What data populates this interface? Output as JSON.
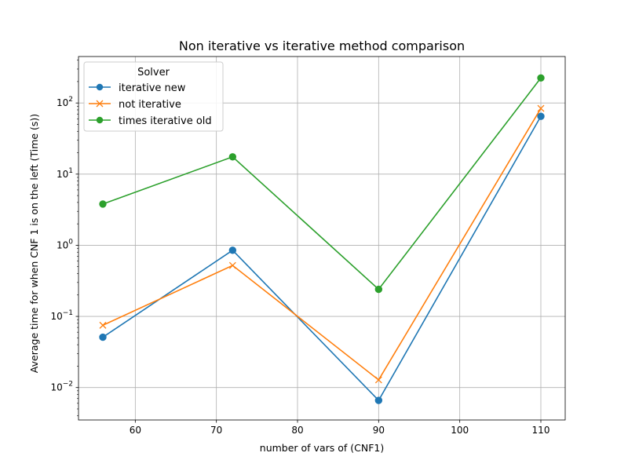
{
  "chart_data": {
    "type": "line",
    "title": "Non iterative vs iterative method comparison",
    "xlabel": "number of vars of (CNF1)",
    "ylabel": "Average time for when CNF 1 is on the left (Time (s))",
    "yscale": "log",
    "xlim": [
      53,
      113
    ],
    "ylim": [
      0.0035,
      450
    ],
    "x_ticks": [
      60,
      70,
      80,
      90,
      100,
      110
    ],
    "y_ticks": [
      {
        "value": 0.01,
        "base": "10",
        "exp": "−2"
      },
      {
        "value": 0.1,
        "base": "10",
        "exp": "−1"
      },
      {
        "value": 1,
        "base": "10",
        "exp": "0"
      },
      {
        "value": 10,
        "base": "10",
        "exp": "1"
      },
      {
        "value": 100,
        "base": "10",
        "exp": "2"
      }
    ],
    "grid": true,
    "legend": {
      "title": "Solver",
      "placement": "upper left"
    },
    "series": [
      {
        "name": "iterative new",
        "color": "#1f77b4",
        "marker": "circle",
        "x": [
          56,
          72,
          90,
          110
        ],
        "y": [
          0.051,
          0.85,
          0.0066,
          65
        ]
      },
      {
        "name": "not iterative",
        "color": "#ff7f0e",
        "marker": "x",
        "x": [
          56,
          72,
          90,
          110
        ],
        "y": [
          0.075,
          0.52,
          0.0128,
          84
        ]
      },
      {
        "name": "times iterative old",
        "color": "#2ca02c",
        "marker": "circle",
        "x": [
          56,
          72,
          90,
          110
        ],
        "y": [
          3.8,
          17.5,
          0.24,
          225
        ]
      }
    ]
  }
}
